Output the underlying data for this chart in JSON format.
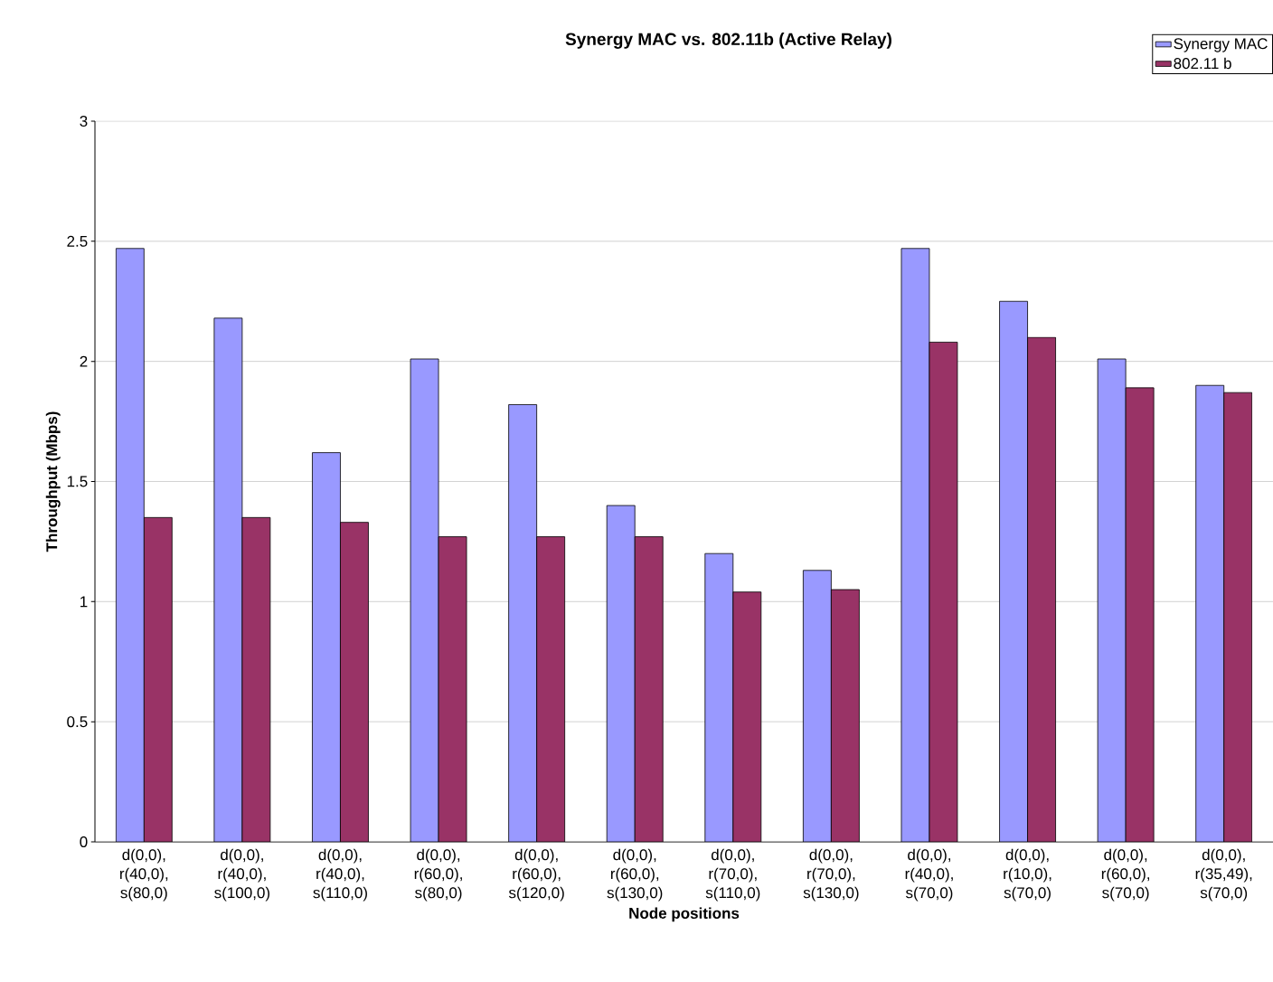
{
  "chart_data": {
    "type": "bar",
    "title": "Synergy MAC vs. 802.11b (Active Relay)",
    "xlabel": "Node positions",
    "ylabel": "Throughput (Mbps)",
    "categories": [
      "d(0,0), r(40,0), s(80,0)",
      "d(0,0), r(40,0), s(100,0)",
      "d(0,0), r(40,0), s(110,0)",
      "d(0,0), r(60,0), s(80,0)",
      "d(0,0), r(60,0), s(120,0)",
      "d(0,0), r(60,0), s(130,0)",
      "d(0,0), r(70,0), s(110,0)",
      "d(0,0), r(70,0), s(130,0)",
      "d(0,0), r(40,0), s(70,0)",
      "d(0,0), r(10,0), s(70,0)",
      "d(0,0), r(60,0), s(70,0)",
      "d(0,0), r(35,49), s(70,0)"
    ],
    "series": [
      {
        "name": "Synergy MAC",
        "color": "#9999ff",
        "values": [
          2.47,
          2.18,
          1.62,
          2.01,
          1.82,
          1.4,
          1.2,
          1.13,
          2.47,
          2.25,
          2.01,
          1.9
        ]
      },
      {
        "name": "802.11 b",
        "color": "#993366",
        "values": [
          1.35,
          1.35,
          1.33,
          1.27,
          1.27,
          1.27,
          1.04,
          1.05,
          2.08,
          2.1,
          1.89,
          1.87
        ]
      }
    ],
    "ylim": [
      0,
      3
    ],
    "yticks": [
      0,
      0.5,
      1,
      1.5,
      2,
      2.5,
      3
    ],
    "grid": "y",
    "legend": "top right"
  }
}
